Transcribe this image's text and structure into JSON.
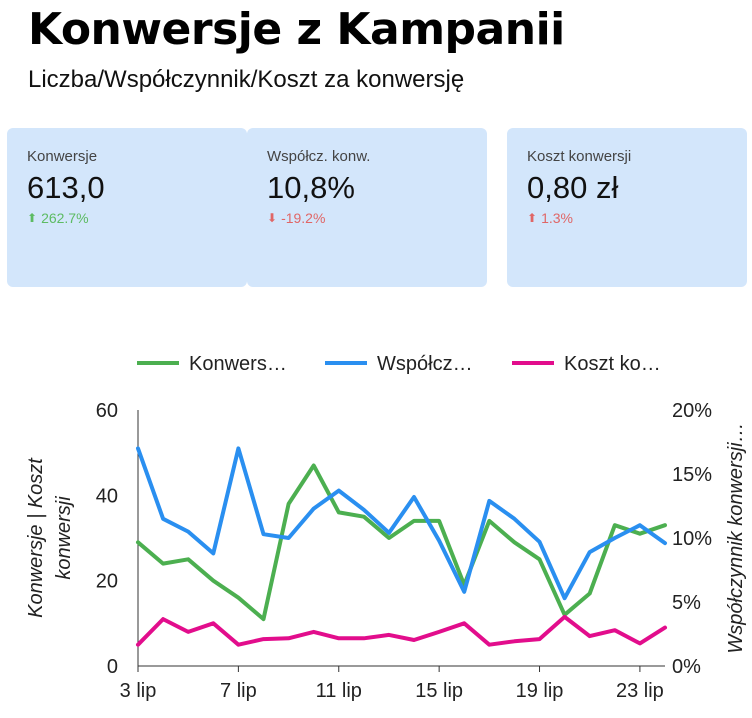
{
  "header": {
    "title": "Konwersje z Kampanii",
    "subtitle": "Liczba/Współczynnik/Koszt za konwersję"
  },
  "kpis": [
    {
      "label": "Konwersje",
      "value": "613,0",
      "delta": "262.7%",
      "direction": "up",
      "color": "#5dbb63"
    },
    {
      "label": "Współcz. konw.",
      "value": "10,8%",
      "delta": "-19.2%",
      "direction": "down",
      "color": "#e06666"
    },
    {
      "label": "Koszt konwersji",
      "value": "0,80 zł",
      "delta": "1.3%",
      "direction": "up",
      "color": "#e06666"
    }
  ],
  "chart_data": {
    "type": "line",
    "x": [
      "3 lip",
      "4 lip",
      "5 lip",
      "6 lip",
      "7 lip",
      "8 lip",
      "9 lip",
      "10 lip",
      "11 lip",
      "12 lip",
      "13 lip",
      "14 lip",
      "15 lip",
      "16 lip",
      "17 lip",
      "18 lip",
      "19 lip",
      "20 lip",
      "21 lip",
      "22 lip",
      "23 lip",
      "24 lip"
    ],
    "x_tick_labels": [
      "3 lip",
      "7 lip",
      "11 lip",
      "15 lip",
      "19 lip",
      "23 lip"
    ],
    "legend": [
      "Konwers…",
      "Współcz…",
      "Koszt ko…"
    ],
    "legend_position": "top",
    "series": [
      {
        "name": "Konwersje",
        "axis": "left",
        "color": "#4caf50",
        "values": [
          29,
          24,
          25,
          20,
          16,
          11,
          38,
          47,
          36,
          35,
          30,
          34,
          34,
          19,
          34,
          29,
          25,
          12,
          17,
          33,
          31,
          33
        ]
      },
      {
        "name": "Współczynnik konwersji",
        "axis": "right",
        "color": "#2a8ff0",
        "values": [
          17.0,
          11.5,
          10.5,
          8.8,
          17.0,
          10.3,
          10.0,
          12.3,
          13.7,
          12.2,
          10.4,
          13.2,
          9.8,
          5.8,
          12.9,
          11.5,
          9.7,
          5.3,
          8.9,
          10.0,
          11.0,
          9.6
        ]
      },
      {
        "name": "Koszt konwersji",
        "axis": "left",
        "color": "#e20d8c",
        "values": [
          5.0,
          11.0,
          8.0,
          10.0,
          5.0,
          6.3,
          6.5,
          8.0,
          6.5,
          6.5,
          7.3,
          6.1,
          8.0,
          10.0,
          5.0,
          5.8,
          6.3,
          11.5,
          7.0,
          8.4,
          5.3,
          9.0
        ]
      }
    ],
    "y_left": {
      "label": "Konwersje | Koszt konwersji",
      "ylim": [
        0,
        60
      ],
      "ticks": [
        "0",
        "20",
        "40",
        "60"
      ]
    },
    "y_right": {
      "label": "Współczynnik konwersji…",
      "ylim": [
        0,
        20
      ],
      "ticks": [
        "0%",
        "5%",
        "10%",
        "15%",
        "20%"
      ]
    },
    "grid": false
  }
}
